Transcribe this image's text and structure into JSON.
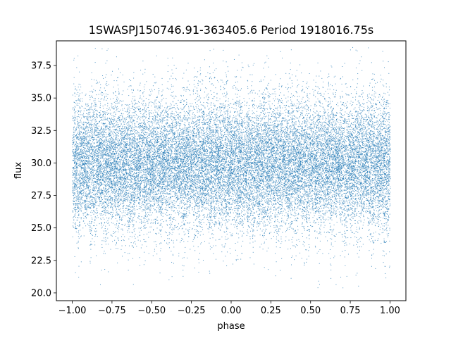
{
  "chart_data": {
    "type": "scatter",
    "title": "1SWASPJ150746.91-363405.6 Period 1918016.75s",
    "xlabel": "phase",
    "ylabel": "flux",
    "xlim": [
      -1.1,
      1.1
    ],
    "ylim": [
      19.4,
      39.4
    ],
    "x_ticks": [
      -1.0,
      -0.75,
      -0.5,
      -0.25,
      0.0,
      0.25,
      0.5,
      0.75,
      1.0
    ],
    "x_tick_labels": [
      "−1.00",
      "−0.75",
      "−0.50",
      "−0.25",
      "0.00",
      "0.25",
      "0.50",
      "0.75",
      "1.00"
    ],
    "y_ticks": [
      20.0,
      22.5,
      25.0,
      27.5,
      30.0,
      32.5,
      35.0,
      37.5
    ],
    "y_tick_labels": [
      "20.0",
      "22.5",
      "25.0",
      "27.5",
      "30.0",
      "32.5",
      "35.0",
      "37.5"
    ],
    "series_color": "#1f77b4",
    "grid": false,
    "legend": "none",
    "distribution": {
      "x_range": [
        -1.0,
        1.0
      ],
      "core_range": [
        26.0,
        33.5
      ],
      "center": 30.0,
      "extreme_range": [
        20.4,
        39.0
      ],
      "n_points": 26000
    }
  }
}
